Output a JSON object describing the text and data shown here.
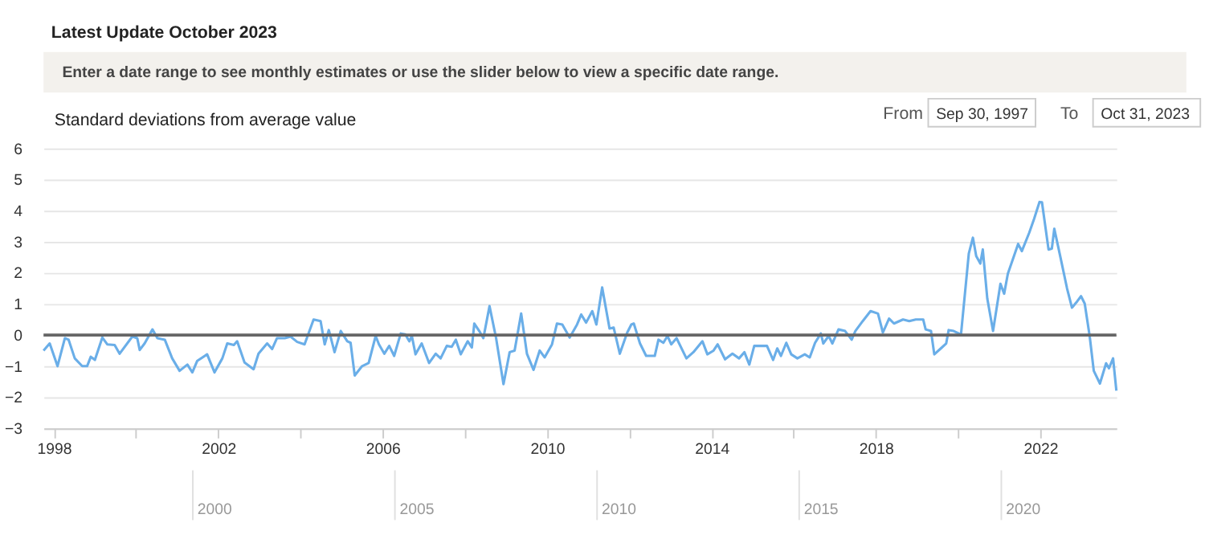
{
  "chart_data": {
    "type": "line",
    "title": "Latest Update October 2023",
    "subtitle": "Enter a date range to see monthly estimates or use the slider below to view a specific date range.",
    "ylabel": "Standard deviations from average value",
    "annotations": [
      "From",
      "Sep 30, 1997",
      "To",
      "Oct 31, 2023",
      "2000",
      "2005",
      "2010",
      "2015",
      "2020"
    ],
    "series": [
      {
        "color": "#6aaee8",
        "x": [
          1997.75,
          1997.9,
          1998.09,
          1998.27,
          1998.36,
          1998.51,
          1998.69,
          1998.81,
          1998.9,
          1999.0,
          1999.18,
          1999.3,
          1999.48,
          1999.6,
          1999.91,
          2000.03,
          2000.09,
          2000.21,
          2000.4,
          2000.52,
          2000.7,
          2000.88,
          2001.06,
          2001.25,
          2001.37,
          2001.49,
          2001.73,
          2001.91,
          2002.1,
          2002.22,
          2002.38,
          2002.46,
          2002.64,
          2002.86,
          2002.98,
          2003.19,
          2003.31,
          2003.43,
          2003.62,
          2003.76,
          2003.92,
          2004.1,
          2004.32,
          2004.49,
          2004.59,
          2004.69,
          2004.83,
          2004.98,
          2005.14,
          2005.22,
          2005.32,
          2005.5,
          2005.66,
          2005.83,
          2005.91,
          2006.04,
          2006.16,
          2006.28,
          2006.44,
          2006.55,
          2006.65,
          2006.71,
          2006.8,
          2006.95,
          2007.13,
          2007.29,
          2007.41,
          2007.56,
          2007.68,
          2007.78,
          2007.9,
          2008.07,
          2008.17,
          2008.23,
          2008.35,
          2008.45,
          2008.6,
          2008.76,
          2008.94,
          2009.09,
          2009.21,
          2009.37,
          2009.51,
          2009.67,
          2009.82,
          2009.94,
          2010.12,
          2010.24,
          2010.37,
          2010.55,
          2010.73,
          2010.83,
          2010.95,
          2011.1,
          2011.2,
          2011.34,
          2011.52,
          2011.62,
          2011.77,
          2011.95,
          2012.05,
          2012.11,
          2012.26,
          2012.41,
          2012.62,
          2012.71,
          2012.83,
          2012.93,
          2013.02,
          2013.15,
          2013.39,
          2013.56,
          2013.78,
          2013.9,
          2014.05,
          2014.15,
          2014.33,
          2014.51,
          2014.67,
          2014.8,
          2014.92,
          2015.04,
          2015.23,
          2015.35,
          2015.5,
          2015.6,
          2015.69,
          2015.82,
          2015.94,
          2016.09,
          2016.27,
          2016.39,
          2016.52,
          2016.66,
          2016.72,
          2016.85,
          2016.94,
          2017.09,
          2017.25,
          2017.41,
          2017.5,
          2017.68,
          2017.87,
          2018.05,
          2018.17,
          2018.32,
          2018.44,
          2018.66,
          2018.81,
          2018.97,
          2019.15,
          2019.21,
          2019.34,
          2019.42,
          2019.58,
          2019.71,
          2019.77,
          2019.89,
          2020.07,
          2020.26,
          2020.36,
          2020.44,
          2020.54,
          2020.6,
          2020.71,
          2020.85,
          2021.03,
          2021.12,
          2021.21,
          2021.46,
          2021.55,
          2021.73,
          2021.85,
          2021.98,
          2022.04,
          2022.2,
          2022.28,
          2022.34,
          2022.47,
          2022.65,
          2022.77,
          2022.9,
          2022.99,
          2023.08,
          2023.2,
          2023.3,
          2023.45,
          2023.6,
          2023.67,
          2023.77,
          2023.85
        ],
        "values": [
          -0.5,
          -0.27,
          -1.0,
          -0.1,
          -0.15,
          -0.75,
          -1.0,
          -1.0,
          -0.7,
          -0.8,
          -0.08,
          -0.3,
          -0.32,
          -0.6,
          -0.05,
          -0.1,
          -0.48,
          -0.27,
          0.18,
          -0.1,
          -0.15,
          -0.75,
          -1.15,
          -0.95,
          -1.2,
          -0.83,
          -0.62,
          -1.2,
          -0.75,
          -0.27,
          -0.32,
          -0.2,
          -0.88,
          -1.1,
          -0.6,
          -0.27,
          -0.45,
          -0.1,
          -0.1,
          -0.05,
          -0.22,
          -0.3,
          0.5,
          0.45,
          -0.3,
          0.16,
          -0.55,
          0.13,
          -0.2,
          -0.25,
          -1.3,
          -1.0,
          -0.9,
          -0.03,
          -0.3,
          -0.6,
          -0.35,
          -0.67,
          0.05,
          0.02,
          -0.2,
          -0.03,
          -0.62,
          -0.27,
          -0.9,
          -0.6,
          -0.75,
          -0.35,
          -0.38,
          -0.15,
          -0.62,
          -0.2,
          -0.4,
          0.37,
          0.13,
          -0.1,
          0.93,
          -0.1,
          -1.58,
          -0.55,
          -0.5,
          0.69,
          -0.6,
          -1.12,
          -0.5,
          -0.72,
          -0.3,
          0.37,
          0.34,
          -0.08,
          0.34,
          0.66,
          0.4,
          0.77,
          0.34,
          1.53,
          0.21,
          0.24,
          -0.6,
          0.08,
          0.34,
          0.37,
          -0.27,
          -0.67,
          -0.67,
          -0.15,
          -0.25,
          -0.03,
          -0.3,
          -0.1,
          -0.75,
          -0.55,
          -0.2,
          -0.62,
          -0.5,
          -0.3,
          -0.78,
          -0.6,
          -0.75,
          -0.55,
          -0.95,
          -0.35,
          -0.35,
          -0.35,
          -0.8,
          -0.43,
          -0.67,
          -0.25,
          -0.62,
          -0.75,
          -0.62,
          -0.72,
          -0.25,
          0.05,
          -0.27,
          -0.03,
          -0.27,
          0.18,
          0.13,
          -0.15,
          0.13,
          0.45,
          0.77,
          0.69,
          0.08,
          0.53,
          0.37,
          0.5,
          0.45,
          0.5,
          0.5,
          0.18,
          0.13,
          -0.62,
          -0.43,
          -0.27,
          0.16,
          0.13,
          0.02,
          2.62,
          3.13,
          2.54,
          2.3,
          2.75,
          1.17,
          0.13,
          1.65,
          1.33,
          1.97,
          2.93,
          2.7,
          3.29,
          3.74,
          4.28,
          4.27,
          2.75,
          2.78,
          3.42,
          2.62,
          1.5,
          0.88,
          1.09,
          1.25,
          1.01,
          -0.03,
          -1.15,
          -1.56,
          -0.91,
          -1.07,
          -0.75,
          -1.79
        ]
      }
    ],
    "xlim": [
      1997.75,
      2023.85
    ],
    "xticks": [
      1998,
      {
        "value": 2000,
        "label": null
      },
      2002,
      {
        "value": 2004,
        "label": null
      },
      2006,
      {
        "value": 2008,
        "label": null
      },
      2010,
      {
        "value": 2012,
        "label": null
      },
      2014,
      {
        "value": 2016,
        "label": null
      },
      2018,
      {
        "value": 2020,
        "label": null
      },
      2022
    ],
    "ylim": [
      -3,
      6
    ],
    "yticks": [
      -3,
      -2,
      -1,
      0,
      1,
      2,
      3,
      4,
      5,
      6
    ],
    "grid": "y",
    "line_style": "solid",
    "marker": "none",
    "ref_lines": [
      {
        "axis": "y",
        "value": 0,
        "color": "#666666"
      }
    ]
  }
}
